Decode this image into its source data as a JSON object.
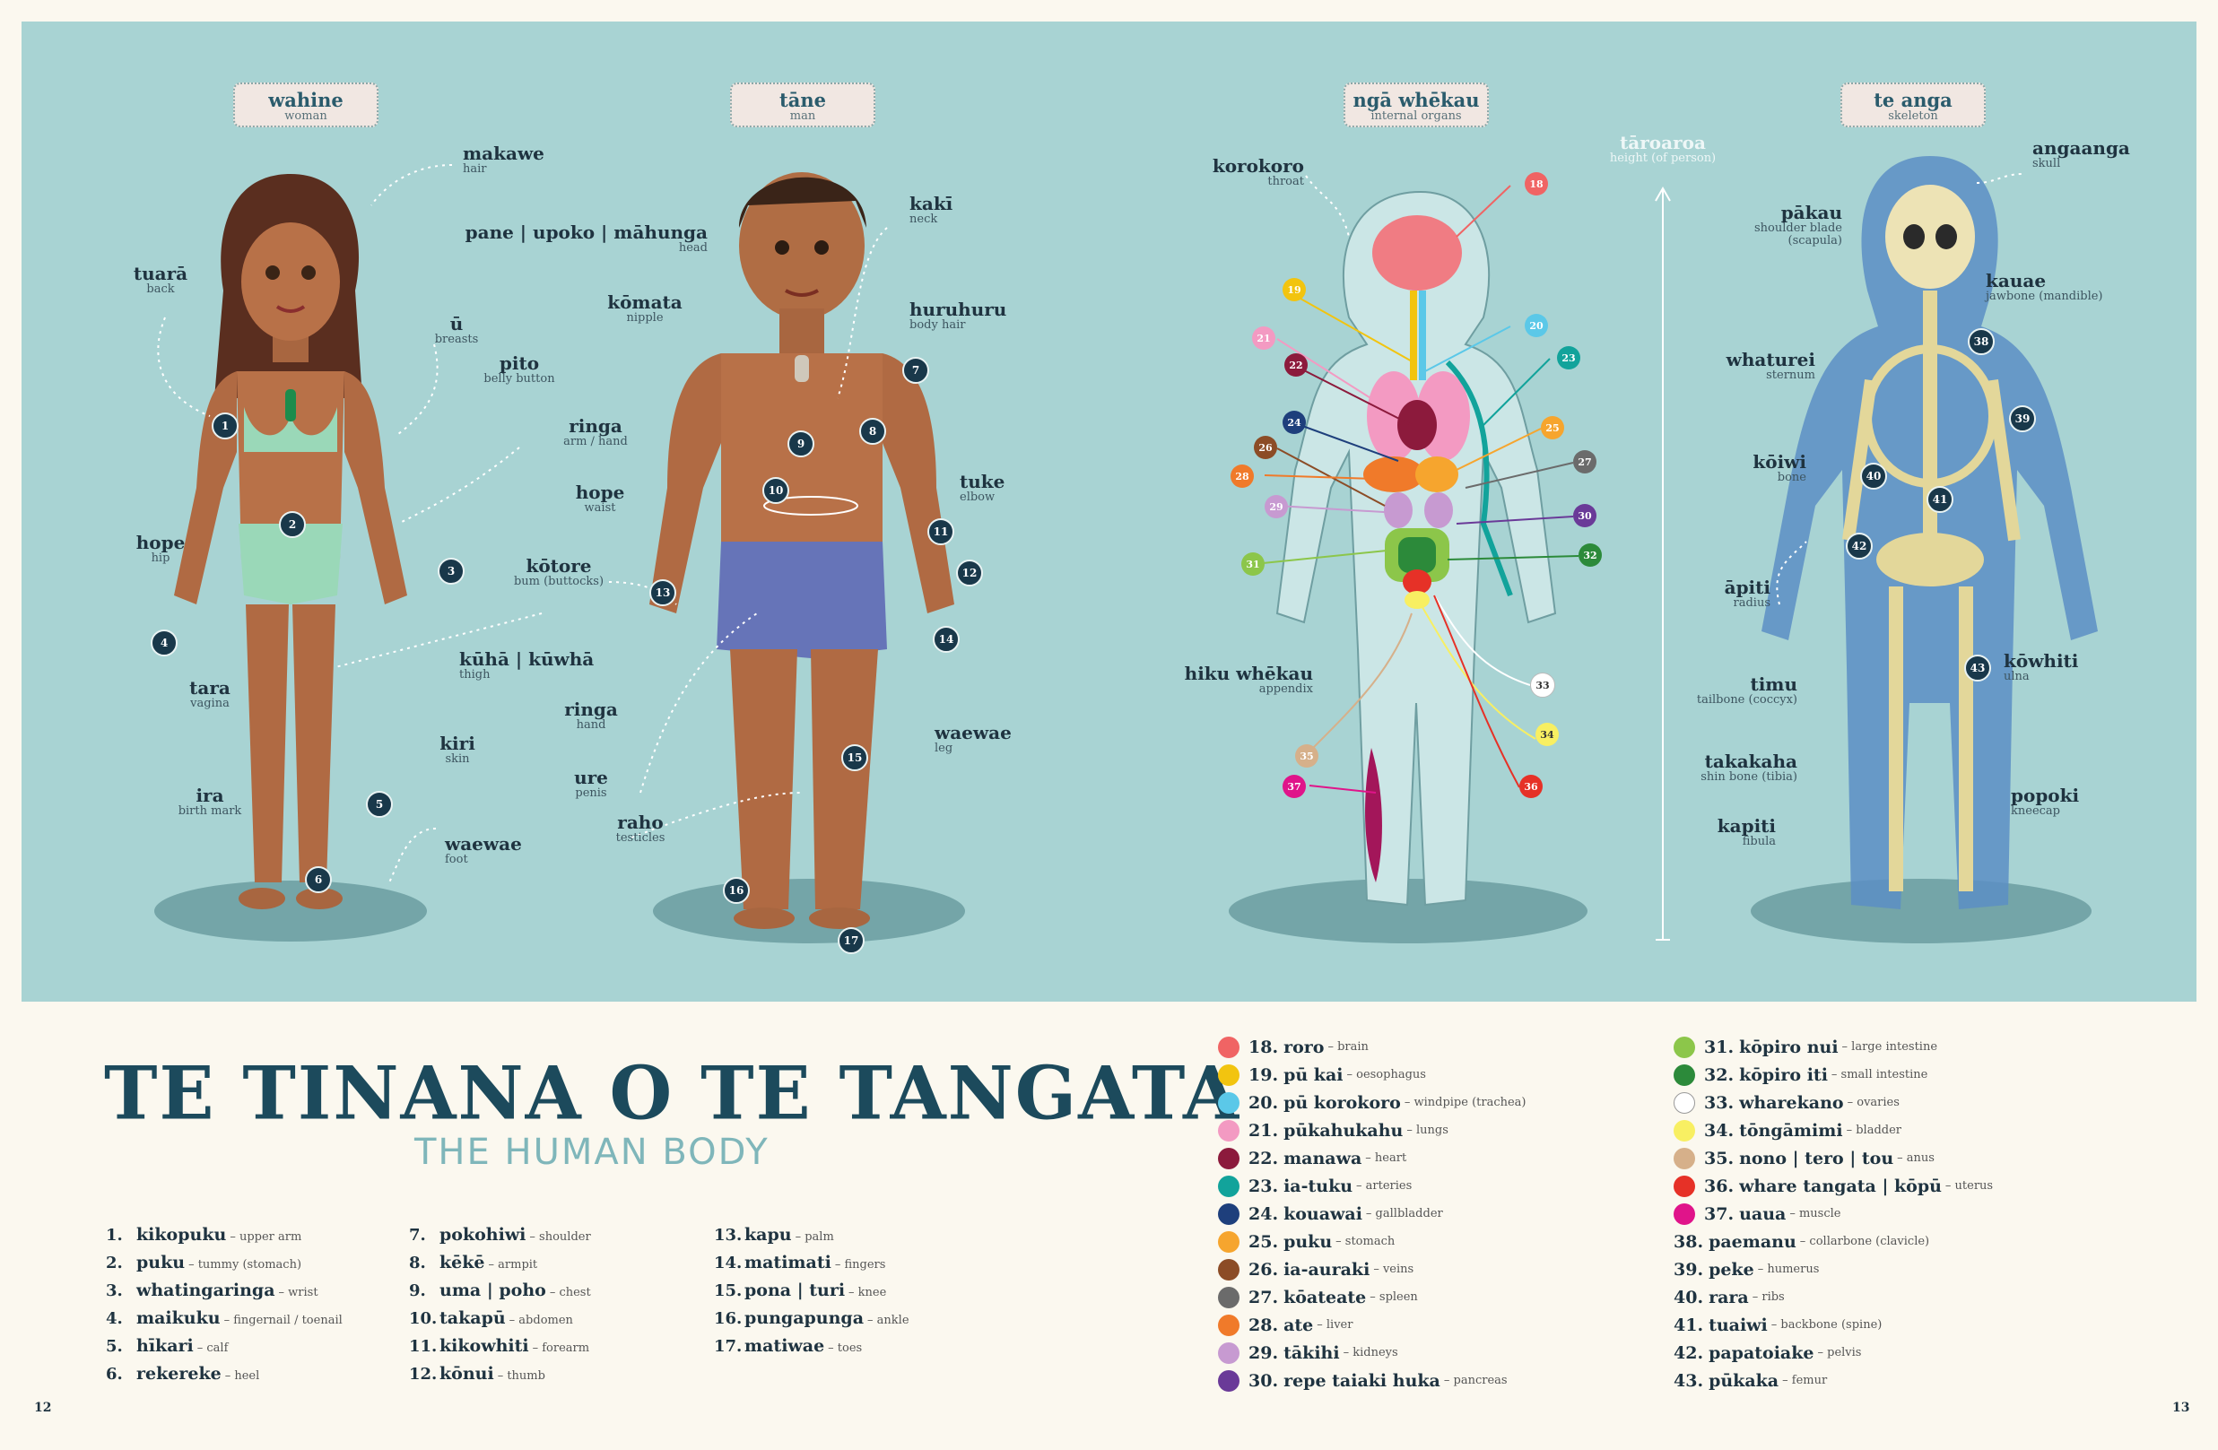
{
  "headers": [
    {
      "mi": "wahine",
      "en": "woman"
    },
    {
      "mi": "tāne",
      "en": "man"
    },
    {
      "mi": "ngā whēkau",
      "en": "internal organs"
    },
    {
      "mi": "te anga",
      "en": "skeleton"
    }
  ],
  "woman_labels": {
    "makawe": {
      "mi": "makawe",
      "en": "hair"
    },
    "tuara": {
      "mi": "tuarā",
      "en": "back"
    },
    "u": {
      "mi": "ū",
      "en": "breasts"
    },
    "pito": {
      "mi": "pito",
      "en": "belly button"
    },
    "ringa": {
      "mi": "ringa",
      "en": "arm / hand"
    },
    "hope": {
      "mi": "hope",
      "en": "hip"
    },
    "kuha": {
      "mi": "kūhā  |  kūwhā",
      "en": "thigh"
    },
    "tara": {
      "mi": "tara",
      "en": "vagina"
    },
    "kiri": {
      "mi": "kiri",
      "en": "skin"
    },
    "ira": {
      "mi": "ira",
      "en": "birth mark"
    },
    "waewae": {
      "mi": "waewae",
      "en": "foot"
    }
  },
  "man_labels": {
    "pane": {
      "mi": "pane  |  upoko  |  māhunga",
      "en": "head"
    },
    "kaki": {
      "mi": "kakī",
      "en": "neck"
    },
    "komata": {
      "mi": "kōmata",
      "en": "nipple"
    },
    "huruhuru": {
      "mi": "huruhuru",
      "en": "body hair"
    },
    "hope": {
      "mi": "hope",
      "en": "waist"
    },
    "tuke": {
      "mi": "tuke",
      "en": "elbow"
    },
    "kotore": {
      "mi": "kōtore",
      "en": "bum (buttocks)"
    },
    "ringa": {
      "mi": "ringa",
      "en": "hand"
    },
    "waewae": {
      "mi": "waewae",
      "en": "leg"
    },
    "ure": {
      "mi": "ure",
      "en": "penis"
    },
    "raho": {
      "mi": "raho",
      "en": "testicles"
    }
  },
  "organ_labels": {
    "korokoro": {
      "mi": "korokoro",
      "en": "throat"
    },
    "hiku": {
      "mi": "hiku whēkau",
      "en": "appendix"
    },
    "taroaroa": {
      "mi": "tāroaroa",
      "en": "height (of person)"
    }
  },
  "skeleton_labels": {
    "angaanga": {
      "mi": "angaanga",
      "en": "skull"
    },
    "pakau": {
      "mi": "pākau",
      "en": "shoulder blade (scapula)"
    },
    "kauae": {
      "mi": "kauae",
      "en": "jawbone (mandible)"
    },
    "whaturei": {
      "mi": "whaturei",
      "en": "sternum"
    },
    "koiwi": {
      "mi": "kōiwi",
      "en": "bone"
    },
    "apiti": {
      "mi": "āpiti",
      "en": "radius"
    },
    "kowhiti": {
      "mi": "kōwhiti",
      "en": "ulna"
    },
    "timu": {
      "mi": "timu",
      "en": "tailbone (coccyx)"
    },
    "takakaha": {
      "mi": "takakaha",
      "en": "shin bone (tibia)"
    },
    "popoki": {
      "mi": "popoki",
      "en": "kneecap"
    },
    "kapiti": {
      "mi": "kapiti",
      "en": "fibula"
    }
  },
  "title": "TE TINANA O TE TANGATA",
  "subtitle": "THE HUMAN BODY",
  "glossary": [
    {
      "n": "1.",
      "mi": "kikopuku",
      "en": "– upper arm"
    },
    {
      "n": "2.",
      "mi": "puku",
      "en": "– tummy (stomach)"
    },
    {
      "n": "3.",
      "mi": "whatingaringa",
      "en": "– wrist"
    },
    {
      "n": "4.",
      "mi": "maikuku",
      "en": "– fingernail / toenail"
    },
    {
      "n": "5.",
      "mi": "hīkari",
      "en": "– calf"
    },
    {
      "n": "6.",
      "mi": "rekereke",
      "en": "– heel"
    },
    {
      "n": "7.",
      "mi": "pokohiwi",
      "en": "– shoulder"
    },
    {
      "n": "8.",
      "mi": "kēkē",
      "en": "– armpit"
    },
    {
      "n": "9.",
      "mi": "uma | poho",
      "en": "– chest"
    },
    {
      "n": "10.",
      "mi": "takapū",
      "en": "– abdomen"
    },
    {
      "n": "11.",
      "mi": "kikowhiti",
      "en": "– forearm"
    },
    {
      "n": "12.",
      "mi": "kōnui",
      "en": "– thumb"
    },
    {
      "n": "13.",
      "mi": "kapu",
      "en": "– palm"
    },
    {
      "n": "14.",
      "mi": "matimati",
      "en": "– fingers"
    },
    {
      "n": "15.",
      "mi": "pona | turi",
      "en": "– knee"
    },
    {
      "n": "16.",
      "mi": "pungapunga",
      "en": "– ankle"
    },
    {
      "n": "17.",
      "mi": "matiwae",
      "en": "– toes"
    }
  ],
  "organs": [
    {
      "n": "18.",
      "mi": "roro",
      "en": "– brain",
      "color": "#f06464"
    },
    {
      "n": "19.",
      "mi": "pū kai",
      "en": "– oesophagus",
      "color": "#f2c40f"
    },
    {
      "n": "20.",
      "mi": "pū korokoro",
      "en": "– windpipe (trachea)",
      "color": "#5bc8e8"
    },
    {
      "n": "21.",
      "mi": "pūkahukahu",
      "en": "– lungs",
      "color": "#f39ac2"
    },
    {
      "n": "22.",
      "mi": "manawa",
      "en": "– heart",
      "color": "#8c1a3c"
    },
    {
      "n": "23.",
      "mi": "ia-tuku",
      "en": "– arteries",
      "color": "#12a39b"
    },
    {
      "n": "24.",
      "mi": "kouawai",
      "en": "– gallbladder",
      "color": "#1e3f7c"
    },
    {
      "n": "25.",
      "mi": "puku",
      "en": "– stomach",
      "color": "#f6a52e"
    },
    {
      "n": "26.",
      "mi": "ia-auraki",
      "en": "– veins",
      "color": "#8c4c26"
    },
    {
      "n": "27.",
      "mi": "kōateate",
      "en": "– spleen",
      "color": "#6b6b6b"
    },
    {
      "n": "28.",
      "mi": "ate",
      "en": "– liver",
      "color": "#f07a2a"
    },
    {
      "n": "29.",
      "mi": "tākihi",
      "en": "– kidneys",
      "color": "#c79ad1"
    },
    {
      "n": "30.",
      "mi": "repe taiaki huka",
      "en": "– pancreas",
      "color": "#6a3a98"
    },
    {
      "n": "31.",
      "mi": "kōpiro nui",
      "en": "– large intestine",
      "color": "#8cc64a"
    },
    {
      "n": "32.",
      "mi": "kōpiro iti",
      "en": "– small intestine",
      "color": "#2c8a3a"
    },
    {
      "n": "33.",
      "mi": "wharekano",
      "en": "– ovaries",
      "color": "#ffffff"
    },
    {
      "n": "34.",
      "mi": "tōngāmimi",
      "en": "– bladder",
      "color": "#f8ef62"
    },
    {
      "n": "35.",
      "mi": "nono | tero | tou",
      "en": "– anus",
      "color": "#d6b08a"
    },
    {
      "n": "36.",
      "mi": "whare tangata | kōpū",
      "en": "– uterus",
      "color": "#e63127"
    },
    {
      "n": "37.",
      "mi": "uaua",
      "en": "– muscle",
      "color": "#e0148a"
    },
    {
      "n": "38.",
      "mi": "paemanu",
      "en": "– collarbone (clavicle)",
      "color": ""
    },
    {
      "n": "39.",
      "mi": "peke",
      "en": "– humerus",
      "color": ""
    },
    {
      "n": "40.",
      "mi": "rara",
      "en": "– ribs",
      "color": ""
    },
    {
      "n": "41.",
      "mi": "tuaiwi",
      "en": "– backbone (spine)",
      "color": ""
    },
    {
      "n": "42.",
      "mi": "papatoiake",
      "en": "– pelvis",
      "color": ""
    },
    {
      "n": "43.",
      "mi": "pūkaka",
      "en": "– femur",
      "color": ""
    }
  ],
  "page_numbers": {
    "left": "12",
    "right": "13"
  }
}
